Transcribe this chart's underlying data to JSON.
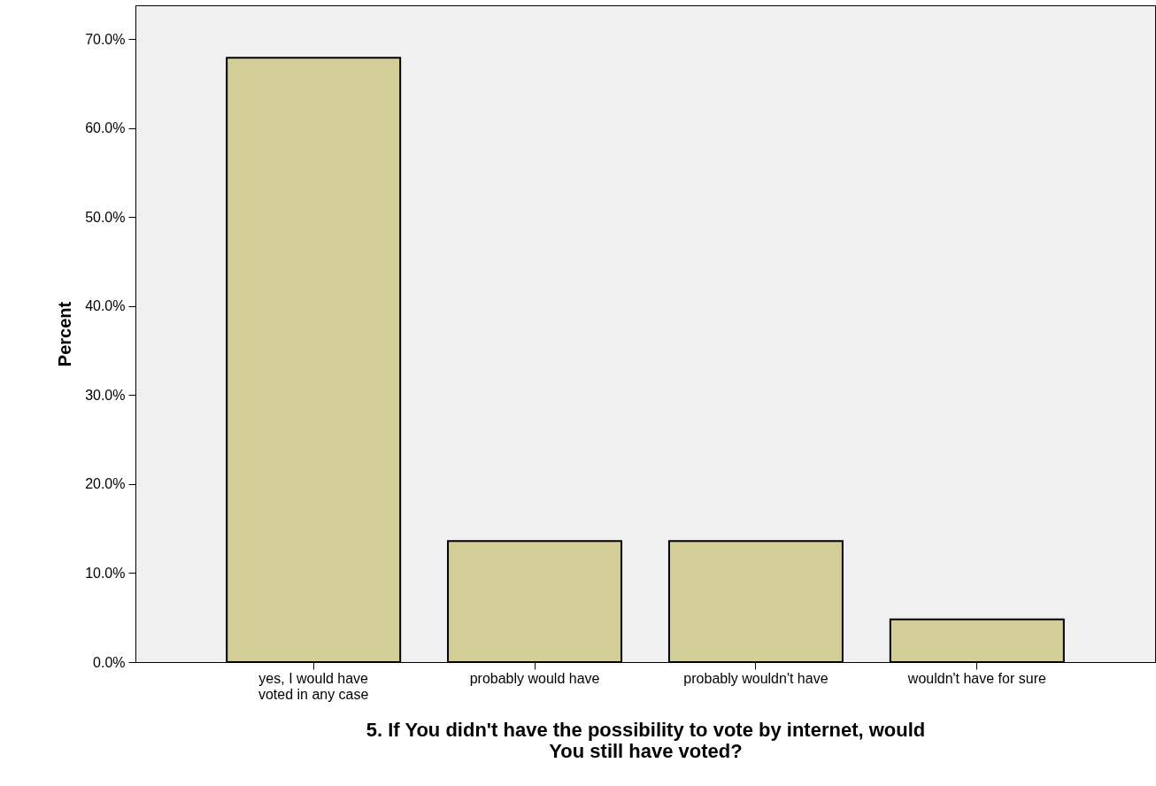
{
  "chart_data": {
    "type": "bar",
    "xlabel": "5. If You didn't have the possibility to vote by internet, would You still have voted?",
    "ylabel": "Percent",
    "categories": [
      "yes, I would have voted in any case",
      "probably would have",
      "probably wouldn't have",
      "wouldn't have for sure"
    ],
    "values": [
      67.9,
      13.6,
      13.6,
      4.8
    ],
    "color": "#d3cd98",
    "ylim": [
      0,
      73.8
    ],
    "yticks": [
      {
        "value": 0,
        "label": "0.0%"
      },
      {
        "value": 10,
        "label": "10.0%"
      },
      {
        "value": 20,
        "label": "20.0%"
      },
      {
        "value": 30,
        "label": "30.0%"
      },
      {
        "value": 40,
        "label": "40.0%"
      },
      {
        "value": 50,
        "label": "50.0%"
      },
      {
        "value": 60,
        "label": "60.0%"
      },
      {
        "value": 70,
        "label": "70.0%"
      }
    ],
    "grid": false
  }
}
